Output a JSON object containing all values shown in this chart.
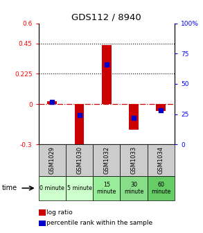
{
  "title": "GDS112 / 8940",
  "samples": [
    "GSM1029",
    "GSM1030",
    "GSM1032",
    "GSM1033",
    "GSM1034"
  ],
  "log_ratios": [
    0.02,
    -0.32,
    0.44,
    -0.19,
    -0.05
  ],
  "percentile_ranks": [
    35,
    24,
    66,
    22,
    28
  ],
  "ylim_left": [
    -0.3,
    0.6
  ],
  "ylim_right": [
    0,
    100
  ],
  "bar_color": "#cc0000",
  "dot_color": "#0000cc",
  "hline_color": "#cc0000",
  "dotted_lines": [
    0.45,
    0.225
  ],
  "right_ticks": [
    0,
    25,
    50,
    75,
    100
  ],
  "right_tick_labels": [
    "0",
    "25",
    "50",
    "75",
    "100%"
  ],
  "left_ticks": [
    -0.3,
    0,
    0.225,
    0.45,
    0.6
  ],
  "left_tick_labels": [
    "-0.3",
    "0",
    "0.225",
    "0.45",
    "0.6"
  ],
  "time_labels": [
    "0 minute",
    "5 minute",
    "15\nminute",
    "30\nminute",
    "60\nminute"
  ],
  "time_colors": [
    "#ccffcc",
    "#ccffcc",
    "#99ee99",
    "#88dd88",
    "#66cc66"
  ],
  "sample_box_color": "#cccccc",
  "legend_log_ratio": "log ratio",
  "legend_percentile": "percentile rank within the sample",
  "xlabel_time": "time"
}
